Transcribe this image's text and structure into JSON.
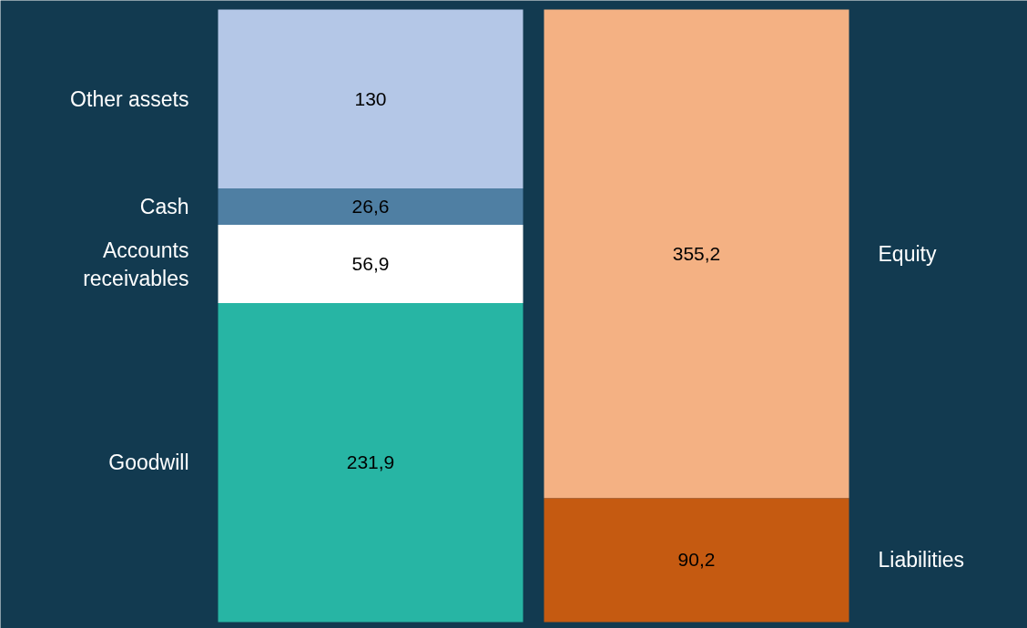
{
  "chart_data": {
    "type": "bar",
    "stacked": true,
    "categories": [
      null,
      null
    ],
    "grid": false,
    "tick_labels": false,
    "series": [
      {
        "name": "Goodwill",
        "color": "#27b5a4",
        "values": [
          231.9,
          null
        ],
        "value_labels": [
          "231,9",
          null
        ]
      },
      {
        "name": "Accounts\nreceivables",
        "color": "#ffffff",
        "values": [
          56.9,
          null
        ],
        "value_labels": [
          "56,9",
          null
        ]
      },
      {
        "name": "Cash",
        "color": "#4f7fa3",
        "values": [
          26.6,
          null
        ],
        "value_labels": [
          "26,6",
          null
        ]
      },
      {
        "name": "Other assets",
        "color": "#b4c7e7",
        "values": [
          130,
          null
        ],
        "value_labels": [
          "130",
          null
        ]
      },
      {
        "name": "Liabilities",
        "color": "#c55a11",
        "values": [
          null,
          90.2
        ],
        "value_labels": [
          null,
          "90,2"
        ]
      },
      {
        "name": "Equity",
        "color": "#f4b183",
        "values": [
          null,
          355.2
        ],
        "value_labels": [
          null,
          "355,2"
        ]
      }
    ]
  }
}
